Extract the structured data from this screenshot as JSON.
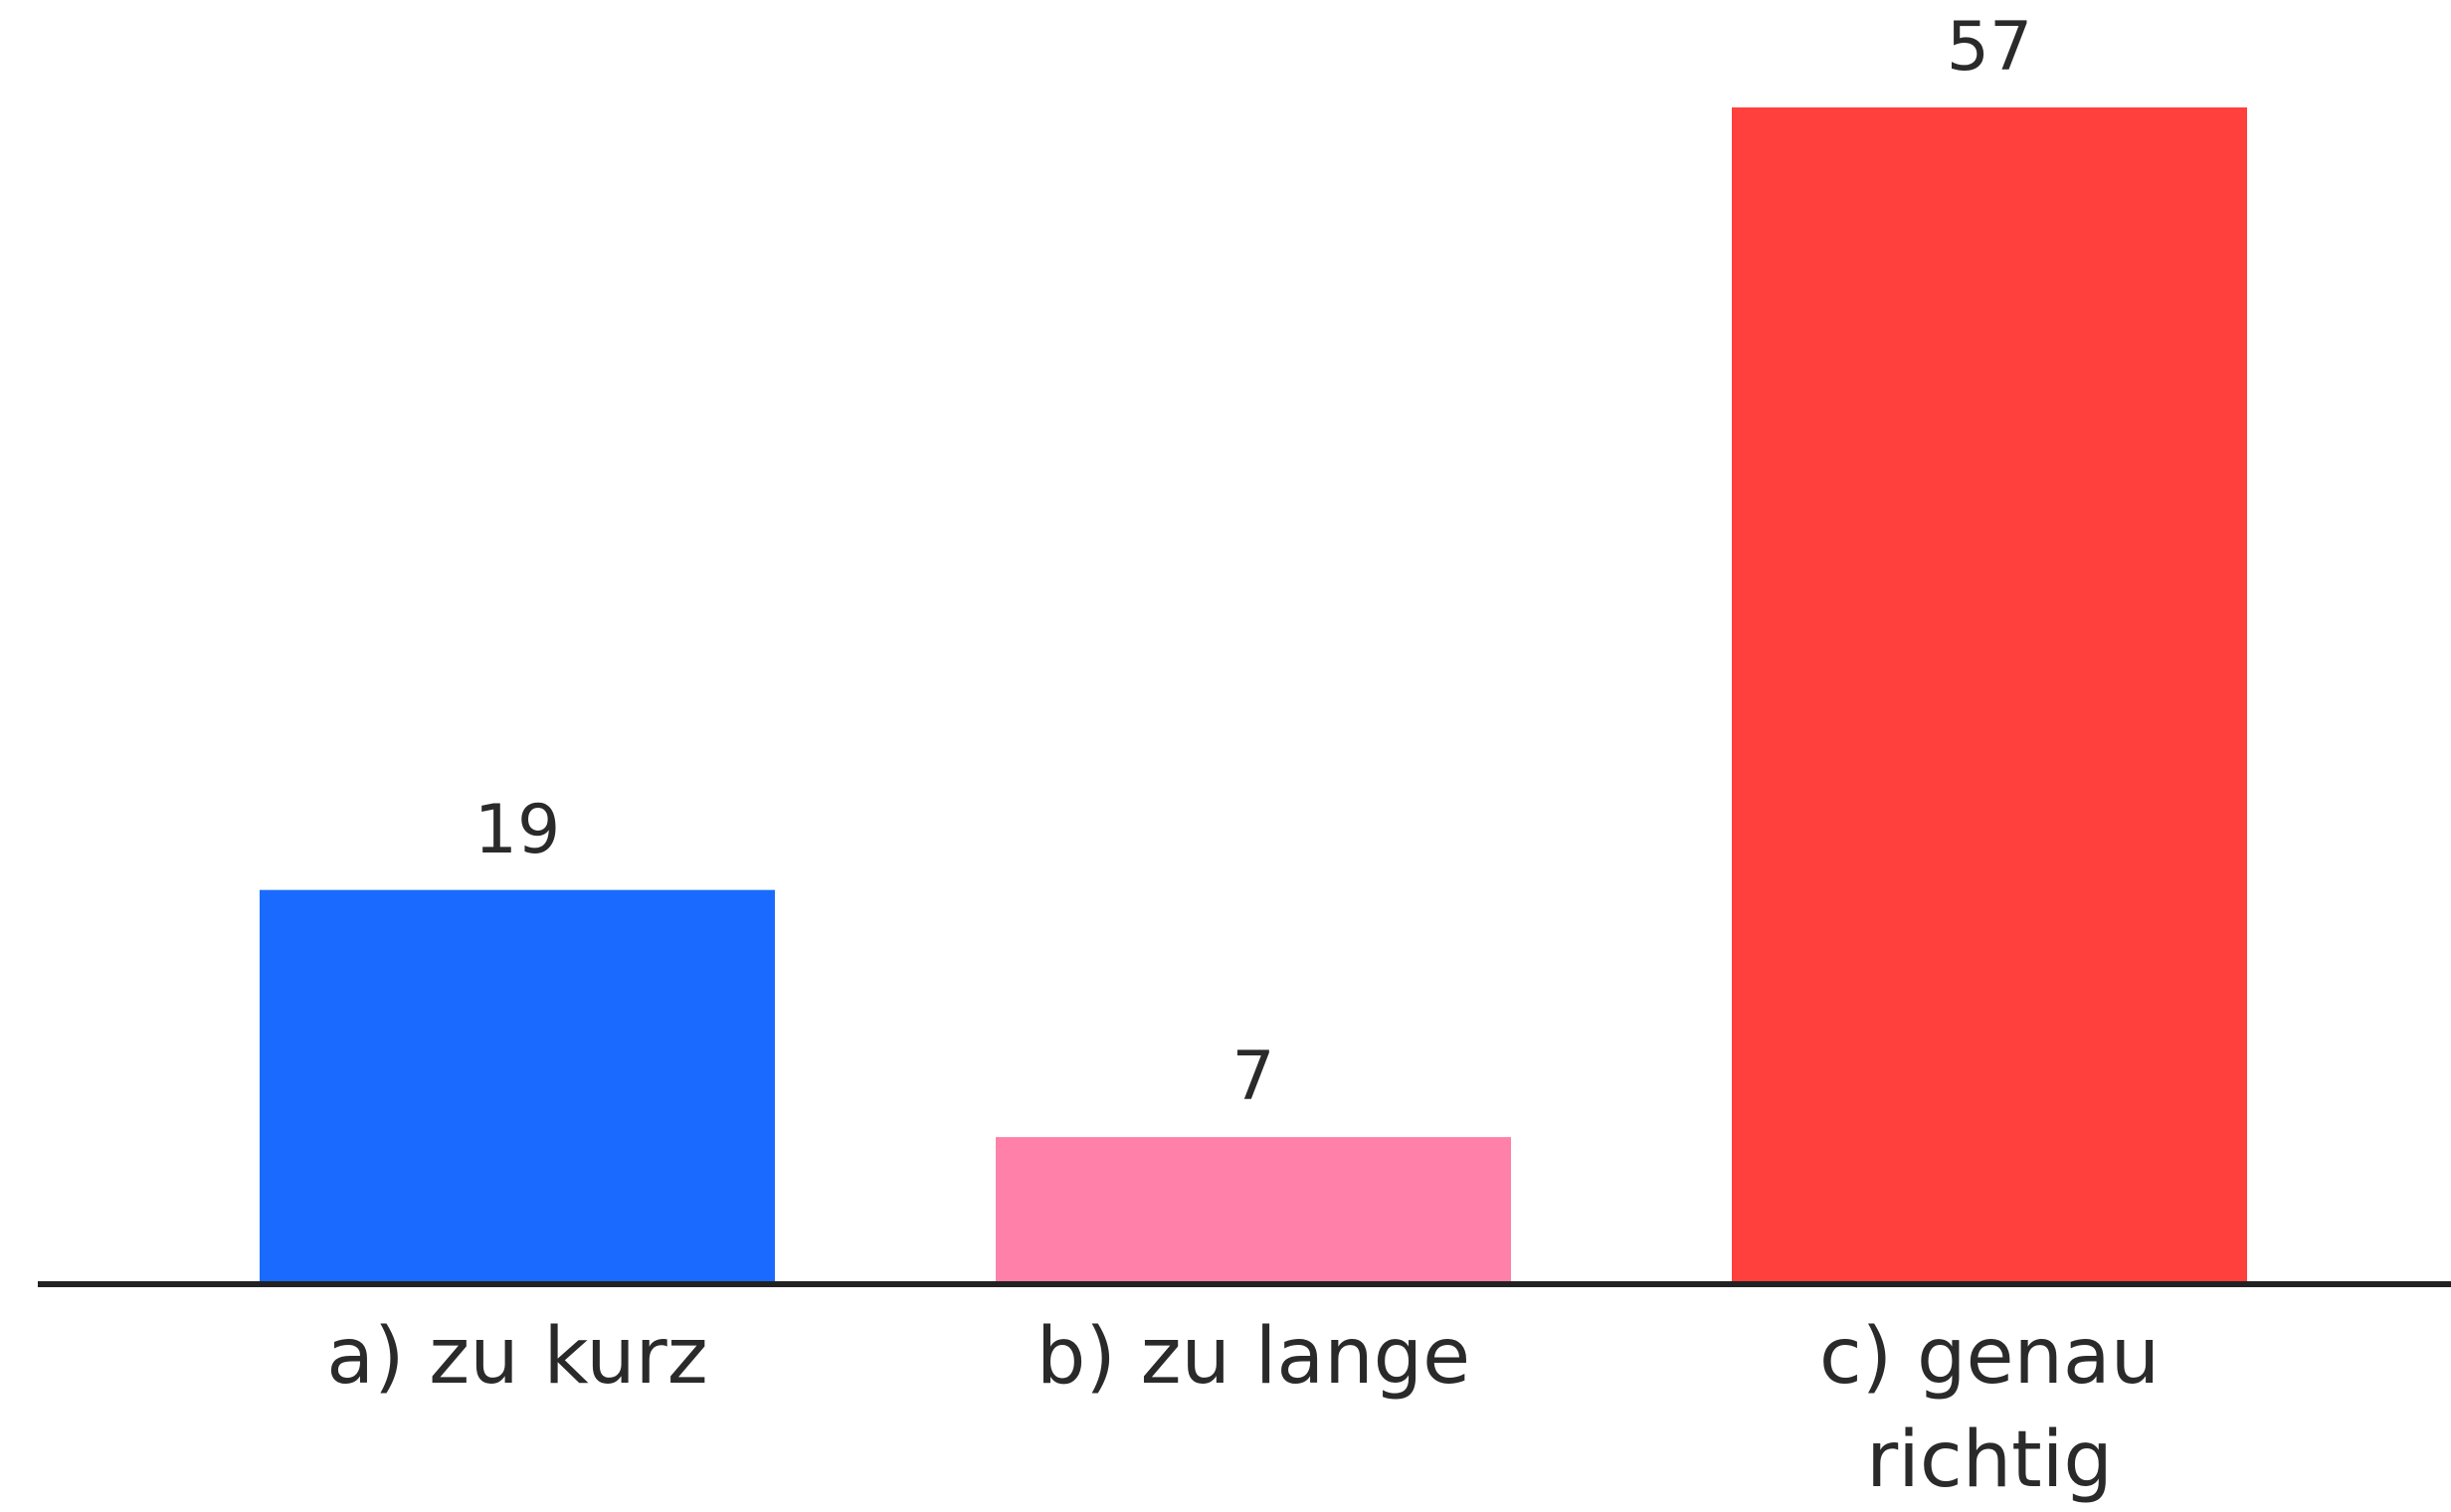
{
  "chart_data": {
    "type": "bar",
    "categories": [
      "a) zu kurz",
      "b) zu lange",
      "c) genau richtig"
    ],
    "values": [
      19,
      7,
      57
    ],
    "colors": [
      "#1a6aff",
      "#ff80a8",
      "#ff403d"
    ]
  }
}
